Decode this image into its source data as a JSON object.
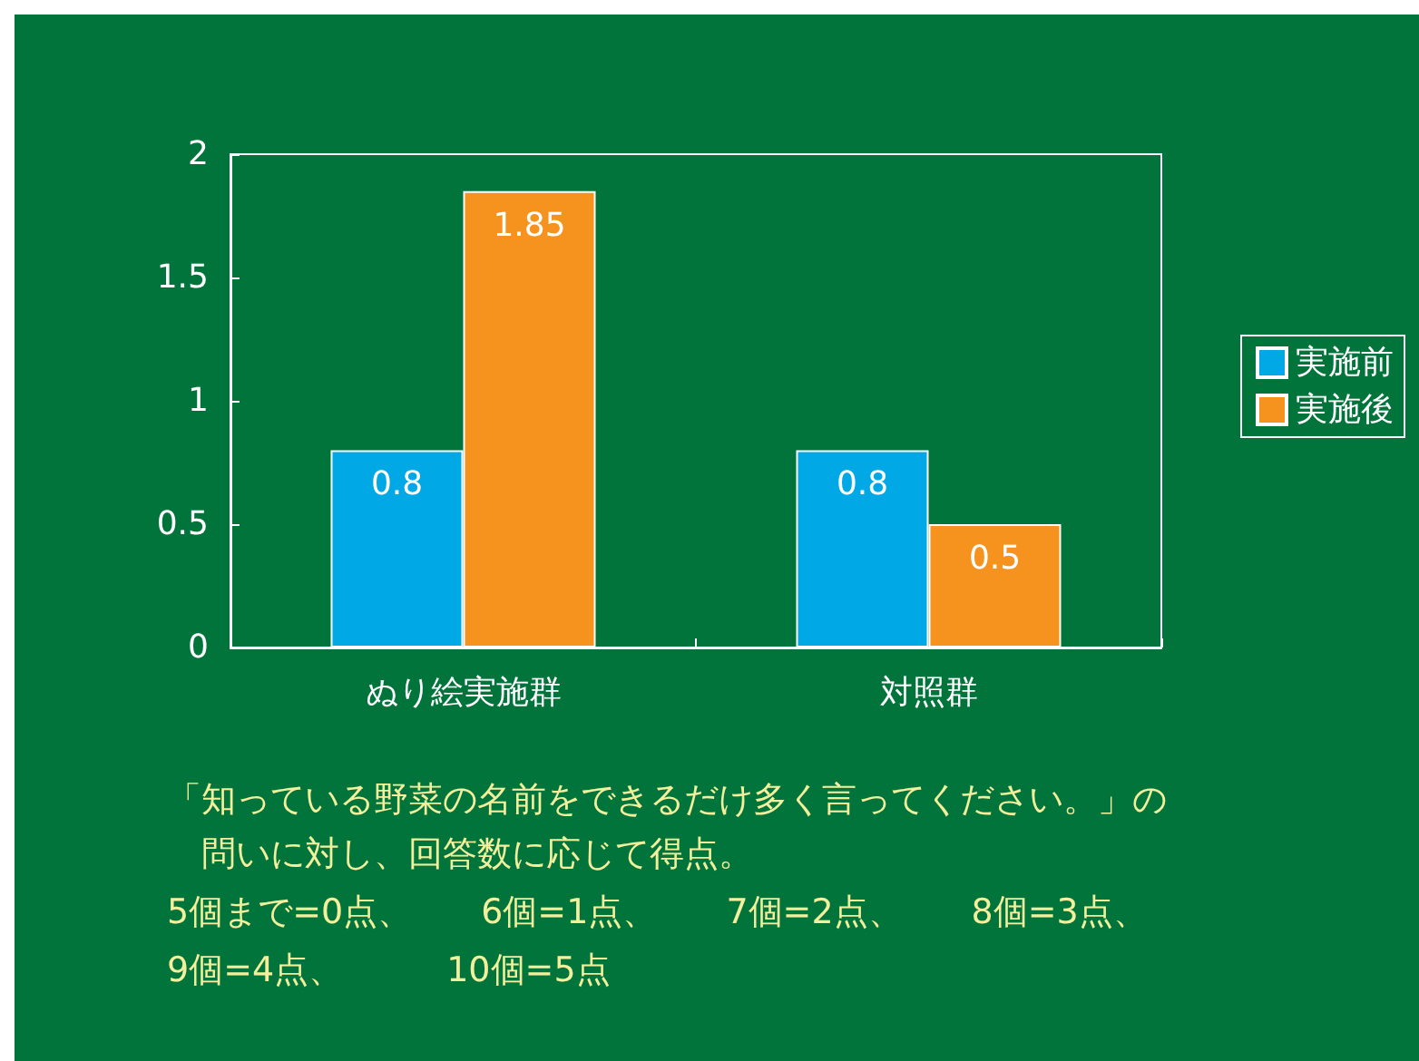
{
  "chart_data": {
    "type": "bar",
    "categories": [
      "ぬり絵実施群",
      "対照群"
    ],
    "series": [
      {
        "name": "実施前",
        "color": "#00a9e6",
        "values": [
          0.8,
          0.8
        ]
      },
      {
        "name": "実施後",
        "color": "#f5931e",
        "values": [
          1.85,
          0.5
        ]
      }
    ],
    "ylim": [
      0,
      2
    ],
    "yticks": [
      0,
      0.5,
      1,
      1.5,
      2
    ],
    "grid": false,
    "legend": "right",
    "data_labels": true,
    "annotations": [
      "「知っている野菜の名前をできるだけ多く言ってください。」の",
      "　問いに対し、回答数に応じて得点。",
      "5個まで=0点、　　6個=1点、　　7個=2点、　　8個=3点、",
      "9個=4点、　　　10個=5点"
    ]
  }
}
